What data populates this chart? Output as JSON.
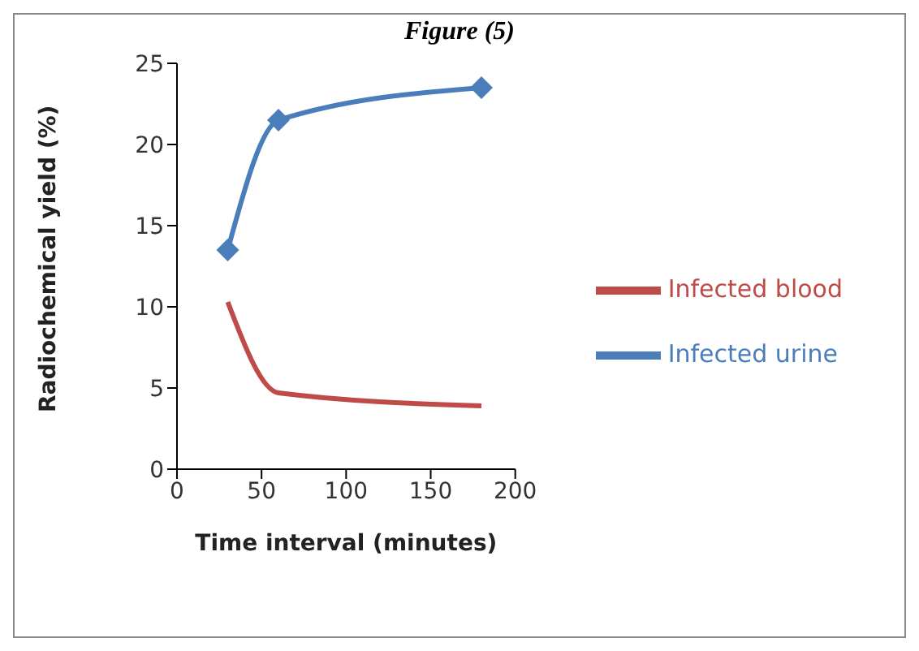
{
  "chart_data": {
    "type": "line",
    "title": "Figure (5)",
    "xlabel": "Time interval (minutes)",
    "ylabel": "Radiochemical yield (%)",
    "x": [
      30,
      60,
      180
    ],
    "series": [
      {
        "name": "Infected urine",
        "color": "#4a7ebb",
        "values": [
          13.5,
          21.5,
          23.5
        ],
        "marker": "diamond"
      },
      {
        "name": "Infected blood",
        "color": "#be4b48",
        "values": [
          10.3,
          4.7,
          3.9
        ],
        "marker": "none"
      }
    ],
    "xlim": [
      0,
      200
    ],
    "xticks": [
      0,
      50,
      100,
      150,
      200
    ],
    "ylim": [
      0,
      25
    ],
    "yticks": [
      0,
      5,
      10,
      15,
      20,
      25
    ],
    "grid": false,
    "legend": "right"
  }
}
